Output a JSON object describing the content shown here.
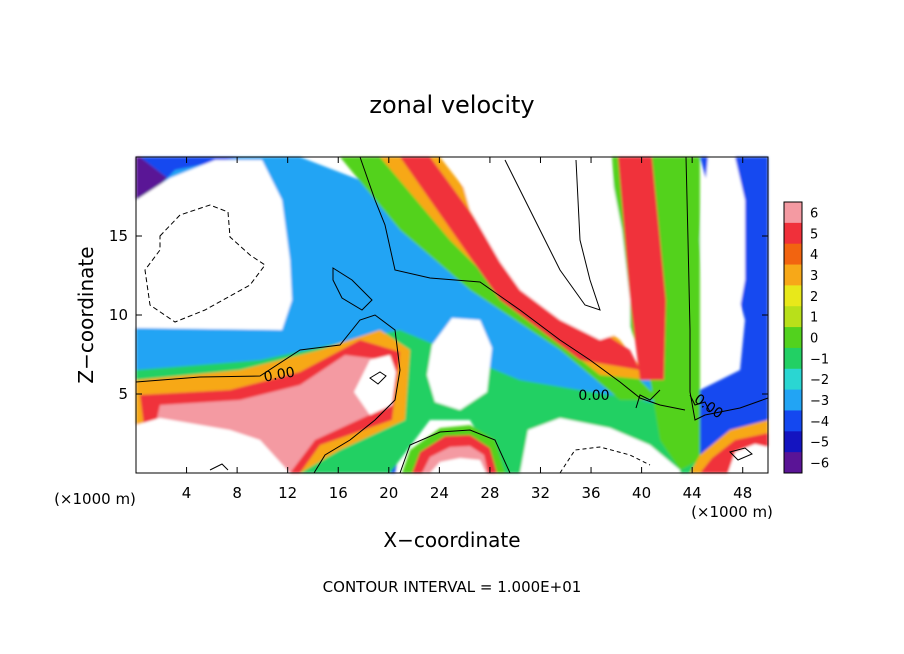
{
  "chart_data": {
    "type": "heatmap",
    "title": "zonal velocity",
    "xlabel": "X−coordinate",
    "ylabel": "Z−coordinate",
    "x_unit_label": "(×1000 m)",
    "z_unit_label": "(×1000 m)",
    "footer": "CONTOUR INTERVAL = 1.000E+01",
    "xlim": [
      0,
      50
    ],
    "ylim": [
      0,
      20
    ],
    "x_ticks": [
      4,
      8,
      12,
      16,
      20,
      24,
      28,
      32,
      36,
      40,
      44,
      48
    ],
    "y_ticks": [
      5,
      10,
      15
    ],
    "colorbar": {
      "levels": [
        6,
        5,
        4,
        3,
        2,
        1,
        0,
        -1,
        -2,
        -3,
        -4,
        -5,
        -6
      ],
      "colors": [
        "#f49aa2",
        "#f0303a",
        "#f26410",
        "#f7a818",
        "#e8e81a",
        "#b8e01a",
        "#52d21e",
        "#22d064",
        "#2ad6d2",
        "#22a4f4",
        "#1448f0",
        "#1414c0",
        "#5a1496"
      ]
    },
    "contour_labels": [
      {
        "text": "0.00",
        "x": 9.0,
        "z": 6.2
      },
      {
        "text": "0.00",
        "x": 36.0,
        "z": 4.9
      },
      {
        "text": "0.00",
        "x": 44.5,
        "z": 4.2
      }
    ],
    "grid": false,
    "legend_position": "right"
  }
}
